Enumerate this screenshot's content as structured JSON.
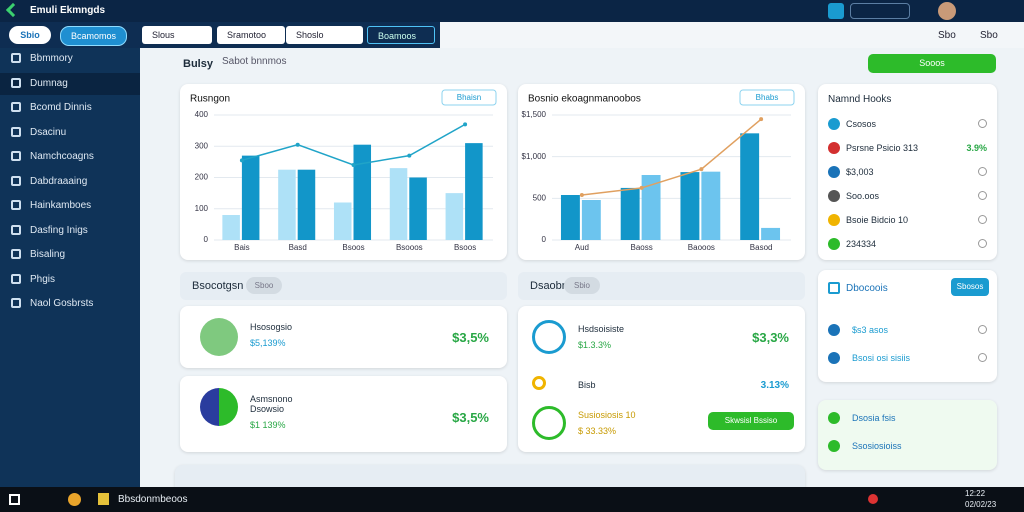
{
  "window": {
    "title": "Emuli Ekmngds"
  },
  "toolbar": {
    "tabs": [
      "Sbio",
      "Bcamomos"
    ],
    "fields": [
      "Slous",
      "Sramotoo",
      "Shoslo",
      "Boamoos"
    ],
    "right": [
      "Sbo",
      "Sbo"
    ]
  },
  "sidebar": [
    "Bbmmory",
    "Dumnag",
    "Bcomd Dinnis",
    "Dsacinu",
    "Namchcoagns",
    "Dabdraaaing",
    "Hainkamboes",
    "Dasfing Inigs",
    "Bisaling",
    "Phgis",
    "Naol Gosbrsts"
  ],
  "header": {
    "title": "Bulsy",
    "subtitle": "Sabot bnnmos",
    "button": "Sooos"
  },
  "charts": [
    {
      "type": "bar",
      "title": "Rusngon",
      "button": "Bhaisn",
      "categories": [
        "Bais",
        "Basd",
        "Bsoos",
        "Bsooos",
        "Bsoos"
      ],
      "ylim": [
        0,
        400
      ],
      "yticks": [
        0,
        100,
        200,
        300,
        400
      ],
      "series": [
        {
          "color": "#aee1f7",
          "values": [
            80,
            225,
            120,
            230,
            150
          ]
        },
        {
          "color": "#1296c9",
          "values": [
            270,
            225,
            305,
            200,
            310
          ]
        },
        {
          "type": "line",
          "color": "#20a4c8",
          "values": [
            255,
            305,
            240,
            270,
            370
          ]
        }
      ]
    },
    {
      "type": "bar",
      "title": "Bosnio ekoagnmanoobos",
      "button": "Bhabs",
      "categories": [
        "Aud",
        "Baoss",
        "Baooos",
        "Basod"
      ],
      "ylim": [
        0,
        1500
      ],
      "yticks": [
        0,
        500,
        {
          "value": 1000,
          "label": "$1,000"
        },
        {
          "value": 1500,
          "label": "$1,500"
        }
      ],
      "series": [
        {
          "color": "#1296c9",
          "values": [
            540,
            625,
            815,
            1280
          ]
        },
        {
          "color": "#6cc4ee",
          "values": [
            480,
            780,
            820,
            145
          ]
        },
        {
          "type": "line",
          "color": "#e0a060",
          "values": [
            540,
            625,
            850,
            1450
          ]
        }
      ]
    }
  ],
  "notes": {
    "title": "Namnd Hooks",
    "items": [
      {
        "label": "Csosos"
      },
      {
        "label": "Psrsne Psicio 313",
        "value": "3.9%"
      },
      {
        "label": "$3,003"
      },
      {
        "label": "Soo.oos"
      },
      {
        "label": "Bsoie Bidcio 10"
      },
      {
        "label": "234334"
      }
    ]
  },
  "left_section": {
    "title": "Bsocotgsn",
    "badge": "Sboo",
    "items": [
      {
        "name": "Hsosogsio",
        "sub": "$5,139%",
        "value": "$3,5%"
      },
      {
        "name": "Asmsnono Dsowsio",
        "sub": "$1 139%",
        "value": "$3,5%"
      }
    ]
  },
  "right_section": {
    "title": "Dsaobn",
    "badge": "Sbio",
    "items": [
      {
        "name": "Hsdsoisiste",
        "sub": "$1.3.3%",
        "value": "$3,3%"
      },
      {
        "name": "Bisb",
        "value": "3.13%"
      },
      {
        "name": "Susiosiosis 10",
        "sub": "$ 33.33%",
        "button": "Skwsisl Bssiso"
      }
    ]
  },
  "side_cards": [
    {
      "title": "Dbocoois",
      "button": "Sbosos",
      "items": [
        "$s3 asos",
        "Bsosi osi sisiis"
      ]
    },
    {
      "items": [
        "Dsosia fsis",
        "Ssosiosioiss"
      ]
    }
  ],
  "taskbar": {
    "app": "Bbsdonmbeoos",
    "time": "12:22",
    "date": "02/02/23"
  }
}
